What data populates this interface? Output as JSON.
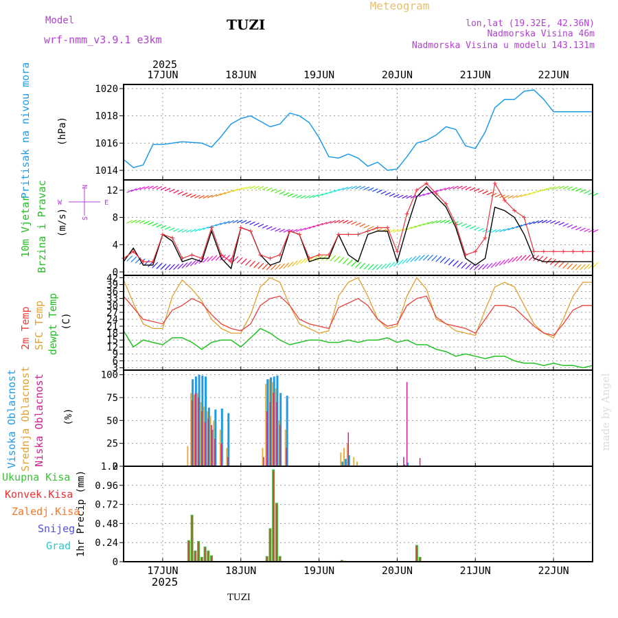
{
  "header": {
    "model_label": "Model",
    "model_name": "wrf-nmm_v3.9.1 e3km",
    "station": "TUZI",
    "title": "Meteogram",
    "coords": "lon,lat (19.32E, 42.36N)",
    "elevation": "Nadmorska Visina 46m",
    "model_elevation": "Nadmorska Visina u modelu 143.131m",
    "footer_station": "TUZI",
    "watermark": "made by Angel"
  },
  "time_axis": {
    "year": "2025",
    "day_labels": [
      "17JUN",
      "18JUN",
      "19JUN",
      "20JUN",
      "21JUN",
      "22JUN"
    ],
    "start_hour": 0,
    "end_hour": 144
  },
  "legend": {
    "pressure": "Pritisak na nivou mora",
    "pressure_unit": "(hPa)",
    "wind_1": "10m Vjetar",
    "wind_2": "Brzina i Pravac",
    "wind_unit": "(m/s)",
    "compass_n": "N",
    "compass_s": "S",
    "compass_e": "E",
    "compass_w": "W",
    "temp_1": "2m Temp",
    "temp_2": "SFC Temp",
    "temp_3": "dewpt Temp",
    "temp_unit": "(C)",
    "cloud_1": "Visoka Oblacnost",
    "cloud_2": "Srednja Oblacnost",
    "cloud_3": "Niska Oblacnost",
    "cloud_unit": "(%)",
    "precip_unit": "1hr Precip (mm)",
    "precip_1": "Ukupna Kisa",
    "precip_2": "Konvek.Kisa",
    "precip_3": "Zaledj.Kisa",
    "precip_4": "Snijeg",
    "precip_5": "Grad"
  },
  "colors": {
    "pressure": "#1e9be6",
    "wind_speed": "#000000",
    "wind_gust": "#e8323c",
    "temp_2m": "#e8403a",
    "temp_sfc": "#e0a030",
    "dewpoint": "#22c022",
    "cloud_high": "#1e9be6",
    "cloud_mid": "#e8b040",
    "cloud_low": "#d0208c",
    "precip_total": "#3cc03c",
    "precip_conv": "#e83030",
    "precip_freeze": "#f07828",
    "snow": "#5050e0",
    "hail": "#30c8c8",
    "label_purple": "#b040d0",
    "title_orange": "#e8c070"
  },
  "chart_data": [
    {
      "type": "line",
      "title": "Pritisak na nivou mora",
      "ylabel": "(hPa)",
      "ylim": [
        1013.3,
        1020.3
      ],
      "yticks": [
        1014,
        1016,
        1018,
        1020
      ],
      "x": [
        0,
        3,
        6,
        9,
        12,
        18,
        24,
        27,
        30,
        33,
        36,
        39,
        42,
        45,
        48,
        51,
        54,
        57,
        60,
        63,
        66,
        69,
        72,
        75,
        78,
        81,
        84,
        87,
        90,
        93,
        96,
        99,
        102,
        105,
        108,
        111,
        114,
        117,
        120,
        123,
        126,
        129,
        132,
        135,
        138,
        141,
        144
      ],
      "values": [
        1014.8,
        1014.2,
        1014.4,
        1015.9,
        1015.9,
        1016.1,
        1016.0,
        1015.7,
        1016.5,
        1017.4,
        1017.8,
        1018.0,
        1017.6,
        1017.2,
        1017.4,
        1018.2,
        1018.0,
        1017.5,
        1016.4,
        1015.0,
        1014.9,
        1015.2,
        1014.9,
        1014.3,
        1014.6,
        1014.0,
        1014.1,
        1015.0,
        1016.0,
        1016.2,
        1016.6,
        1017.2,
        1017.0,
        1015.8,
        1015.6,
        1016.8,
        1018.6,
        1019.2,
        1019.2,
        1019.8,
        1019.9,
        1019.2,
        1018.3,
        1018.3,
        1018.3,
        1018.3,
        1018.3
      ]
    },
    {
      "type": "line",
      "title": "10m Vjetar Brzina i Pravac",
      "ylabel": "(m/s)",
      "ylim": [
        -0.5,
        13.5
      ],
      "yticks": [
        0,
        4,
        8,
        12
      ],
      "x": [
        0,
        3,
        6,
        9,
        12,
        15,
        18,
        21,
        24,
        27,
        30,
        33,
        36,
        39,
        42,
        45,
        48,
        51,
        54,
        57,
        60,
        63,
        66,
        69,
        72,
        75,
        78,
        81,
        84,
        87,
        90,
        93,
        96,
        99,
        102,
        105,
        108,
        111,
        114,
        117,
        120,
        123,
        126,
        129,
        132,
        135,
        138,
        141,
        144
      ],
      "series": [
        {
          "name": "speed",
          "values": [
            1.5,
            3.5,
            1.0,
            1.0,
            5.5,
            4.5,
            1.5,
            2.0,
            1.5,
            6.0,
            2.0,
            0.5,
            6.5,
            6.0,
            2.5,
            1.0,
            1.5,
            6.0,
            5.5,
            1.5,
            2.0,
            2.0,
            5.5,
            2.5,
            1.5,
            5.5,
            6.0,
            6.0,
            1.5,
            6.5,
            11.0,
            12.5,
            11.0,
            9.5,
            6.5,
            2.0,
            1.0,
            2.0,
            9.5,
            9.0,
            8.0,
            5.5,
            2.0,
            1.5,
            1.5,
            1.5,
            1.5,
            1.5,
            1.5
          ]
        },
        {
          "name": "gust",
          "values": [
            2.0,
            3.0,
            1.5,
            1.5,
            5.5,
            5.0,
            2.0,
            2.5,
            2.0,
            6.5,
            2.5,
            1.5,
            6.5,
            6.0,
            2.5,
            2.0,
            2.5,
            6.0,
            5.5,
            2.0,
            2.5,
            2.5,
            5.5,
            5.5,
            5.5,
            6.0,
            6.5,
            6.5,
            3.0,
            8.5,
            12.0,
            13.0,
            11.5,
            10.0,
            7.0,
            2.5,
            3.0,
            5.0,
            13.0,
            10.5,
            9.0,
            8.0,
            3.0,
            3.0,
            3.0,
            3.0,
            3.0,
            3.0,
            3.0
          ]
        }
      ]
    },
    {
      "type": "line",
      "title": "Temperature",
      "ylabel": "(C)",
      "ylim": [
        2,
        43
      ],
      "yticks": [
        3,
        6,
        9,
        12,
        15,
        18,
        21,
        24,
        27,
        30,
        33,
        36,
        39,
        42
      ],
      "x": [
        0,
        3,
        6,
        9,
        12,
        15,
        18,
        21,
        24,
        27,
        30,
        33,
        36,
        39,
        42,
        45,
        48,
        51,
        54,
        57,
        60,
        63,
        66,
        69,
        72,
        75,
        78,
        81,
        84,
        87,
        90,
        93,
        96,
        99,
        102,
        105,
        108,
        111,
        114,
        117,
        120,
        123,
        126,
        129,
        132,
        135,
        138,
        141,
        144
      ],
      "series": [
        {
          "name": "2m Temp",
          "values": [
            34,
            29,
            24,
            23,
            22,
            28,
            30,
            33,
            31,
            26,
            22,
            20,
            19,
            22,
            30,
            33,
            34,
            30,
            24,
            22,
            21,
            20,
            29,
            31,
            33,
            30,
            24,
            21,
            22,
            30,
            33,
            34,
            25,
            22,
            21,
            20,
            18,
            24,
            30,
            30,
            29,
            25,
            21,
            18,
            17,
            22,
            28,
            30,
            30
          ]
        },
        {
          "name": "SFC Temp",
          "values": [
            41,
            31,
            22,
            20,
            20,
            34,
            41,
            37,
            32,
            24,
            20,
            18,
            18,
            26,
            38,
            42,
            40,
            30,
            22,
            20,
            18,
            19,
            34,
            40,
            42,
            34,
            24,
            20,
            21,
            34,
            42,
            37,
            24,
            22,
            19,
            18,
            17,
            28,
            38,
            40,
            38,
            30,
            22,
            18,
            16,
            24,
            34,
            40,
            40
          ]
        },
        {
          "name": "dewpt Temp",
          "values": [
            19,
            12,
            15,
            14,
            13,
            16,
            16,
            14,
            11,
            14,
            15,
            15,
            12,
            16,
            20,
            18,
            15,
            13,
            14,
            15,
            15,
            14,
            14,
            15,
            14,
            15,
            15,
            16,
            14,
            15,
            13,
            13,
            11,
            10,
            8,
            9,
            8,
            7,
            8,
            8,
            6,
            5,
            5,
            4,
            5,
            4,
            4,
            3,
            4
          ]
        }
      ]
    },
    {
      "type": "bar",
      "title": "Oblacnost",
      "ylabel": "(%)",
      "ylim": [
        0,
        105
      ],
      "yticks": [
        0,
        25,
        50,
        75,
        100
      ],
      "x": [
        20,
        21,
        22,
        23,
        24,
        25,
        26,
        27,
        28,
        30,
        32,
        34,
        36,
        43,
        44,
        45,
        46,
        47,
        48,
        50,
        67,
        68,
        69,
        71,
        72,
        86,
        87,
        91
      ],
      "series": [
        {
          "name": "Visoka Oblacnost",
          "values": [
            0,
            95,
            98,
            100,
            99,
            98,
            64,
            40,
            62,
            63,
            58,
            0,
            0,
            0,
            95,
            97,
            98,
            99,
            80,
            77,
            5,
            8,
            12,
            0,
            0,
            2,
            4,
            0
          ]
        },
        {
          "name": "Srednja Oblacnost",
          "values": [
            22,
            80,
            78,
            80,
            70,
            65,
            60,
            55,
            50,
            40,
            20,
            0,
            0,
            20,
            90,
            95,
            92,
            85,
            50,
            40,
            15,
            20,
            25,
            10,
            5,
            0,
            0,
            0
          ]
        },
        {
          "name": "Niska Oblacnost",
          "values": [
            0,
            72,
            80,
            75,
            60,
            48,
            52,
            45,
            30,
            25,
            10,
            0,
            0,
            10,
            60,
            70,
            80,
            70,
            45,
            20,
            0,
            0,
            37,
            0,
            0,
            10,
            92,
            9
          ]
        }
      ]
    },
    {
      "type": "bar",
      "title": "1hr Precip",
      "ylabel": "1hr Precip (mm)",
      "ylim": [
        0,
        1.2
      ],
      "yticks": [
        0,
        0.24,
        0.48,
        0.72,
        0.96,
        1.2
      ],
      "x": [
        20,
        21,
        22,
        23,
        24,
        25,
        26,
        27,
        28,
        44,
        45,
        46,
        47,
        48,
        67,
        68,
        90,
        91
      ],
      "series": [
        {
          "name": "Ukupna Kisa",
          "values": [
            0.27,
            0.59,
            0.14,
            0.26,
            0.06,
            0.19,
            0.14,
            0.08,
            0,
            0.07,
            0.42,
            1.16,
            0.74,
            0.07,
            0.02,
            0.01,
            0.21,
            0.06
          ]
        },
        {
          "name": "Konvek.Kisa",
          "values": [
            0.26,
            0.58,
            0.13,
            0.25,
            0.05,
            0.18,
            0.13,
            0.07,
            0,
            0.06,
            0.41,
            1.14,
            0.73,
            0.06,
            0.02,
            0.01,
            0.2,
            0.05
          ]
        }
      ]
    }
  ]
}
